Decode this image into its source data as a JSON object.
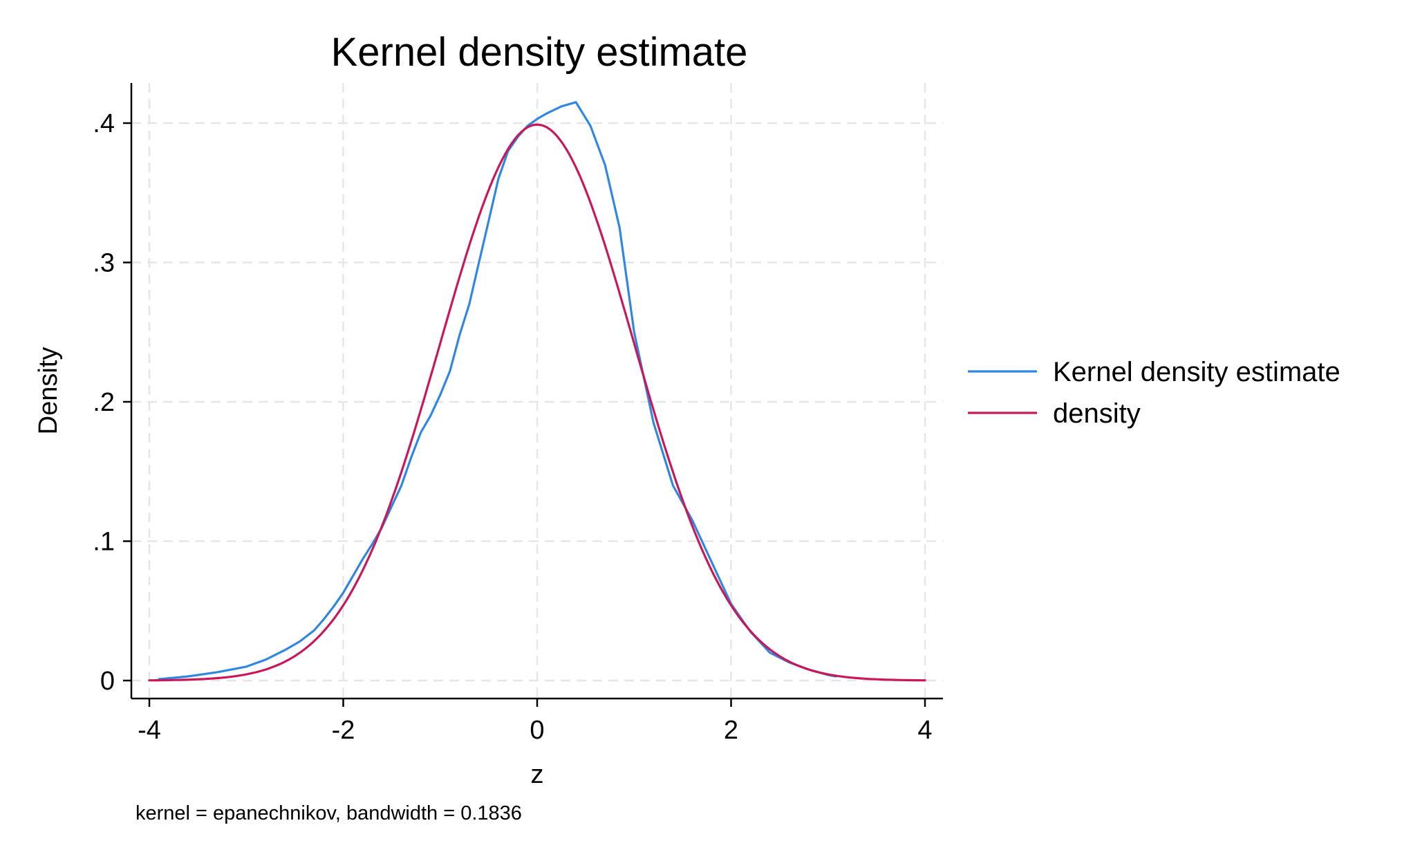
{
  "chart_data": {
    "type": "line",
    "title": "Kernel density estimate",
    "xlabel": "z",
    "ylabel": "Density",
    "note": "kernel = epanechnikov, bandwidth = 0.1836",
    "xlim": [
      -4,
      4
    ],
    "ylim": [
      0,
      0.42
    ],
    "xticks": [
      -4,
      -2,
      0,
      2,
      4
    ],
    "xtick_labels": [
      "-4",
      "-2",
      "0",
      "2",
      "4"
    ],
    "yticks": [
      0,
      0.1,
      0.2,
      0.3,
      0.4
    ],
    "ytick_labels": [
      "0",
      ".1",
      ".2",
      ".3",
      ".4"
    ],
    "grid": true,
    "legend_position": "right",
    "series": [
      {
        "name": "Kernel density estimate",
        "color": "#2f87e3",
        "x": [
          -3.9,
          -3.6,
          -3.3,
          -3.0,
          -2.8,
          -2.6,
          -2.45,
          -2.3,
          -2.2,
          -2.1,
          -2.0,
          -1.9,
          -1.8,
          -1.7,
          -1.6,
          -1.5,
          -1.4,
          -1.3,
          -1.2,
          -1.1,
          -1.0,
          -0.9,
          -0.8,
          -0.7,
          -0.6,
          -0.5,
          -0.4,
          -0.3,
          -0.2,
          -0.1,
          0.0,
          0.1,
          0.25,
          0.4,
          0.55,
          0.7,
          0.85,
          1.0,
          1.2,
          1.4,
          1.6,
          1.8,
          2.0,
          2.2,
          2.4,
          2.6,
          2.8,
          3.0,
          3.08
        ],
        "y": [
          0.001,
          0.003,
          0.006,
          0.01,
          0.015,
          0.022,
          0.028,
          0.036,
          0.044,
          0.053,
          0.063,
          0.075,
          0.087,
          0.098,
          0.11,
          0.125,
          0.14,
          0.16,
          0.178,
          0.19,
          0.205,
          0.222,
          0.248,
          0.27,
          0.3,
          0.33,
          0.36,
          0.38,
          0.39,
          0.398,
          0.403,
          0.407,
          0.412,
          0.415,
          0.398,
          0.37,
          0.325,
          0.25,
          0.185,
          0.14,
          0.115,
          0.085,
          0.055,
          0.035,
          0.02,
          0.013,
          0.008,
          0.004,
          0.003
        ]
      },
      {
        "name": "density",
        "color": "#c8185a",
        "function": "normal_pdf",
        "mean": 0,
        "sd": 1,
        "x_range": [
          -4,
          4
        ]
      }
    ]
  }
}
